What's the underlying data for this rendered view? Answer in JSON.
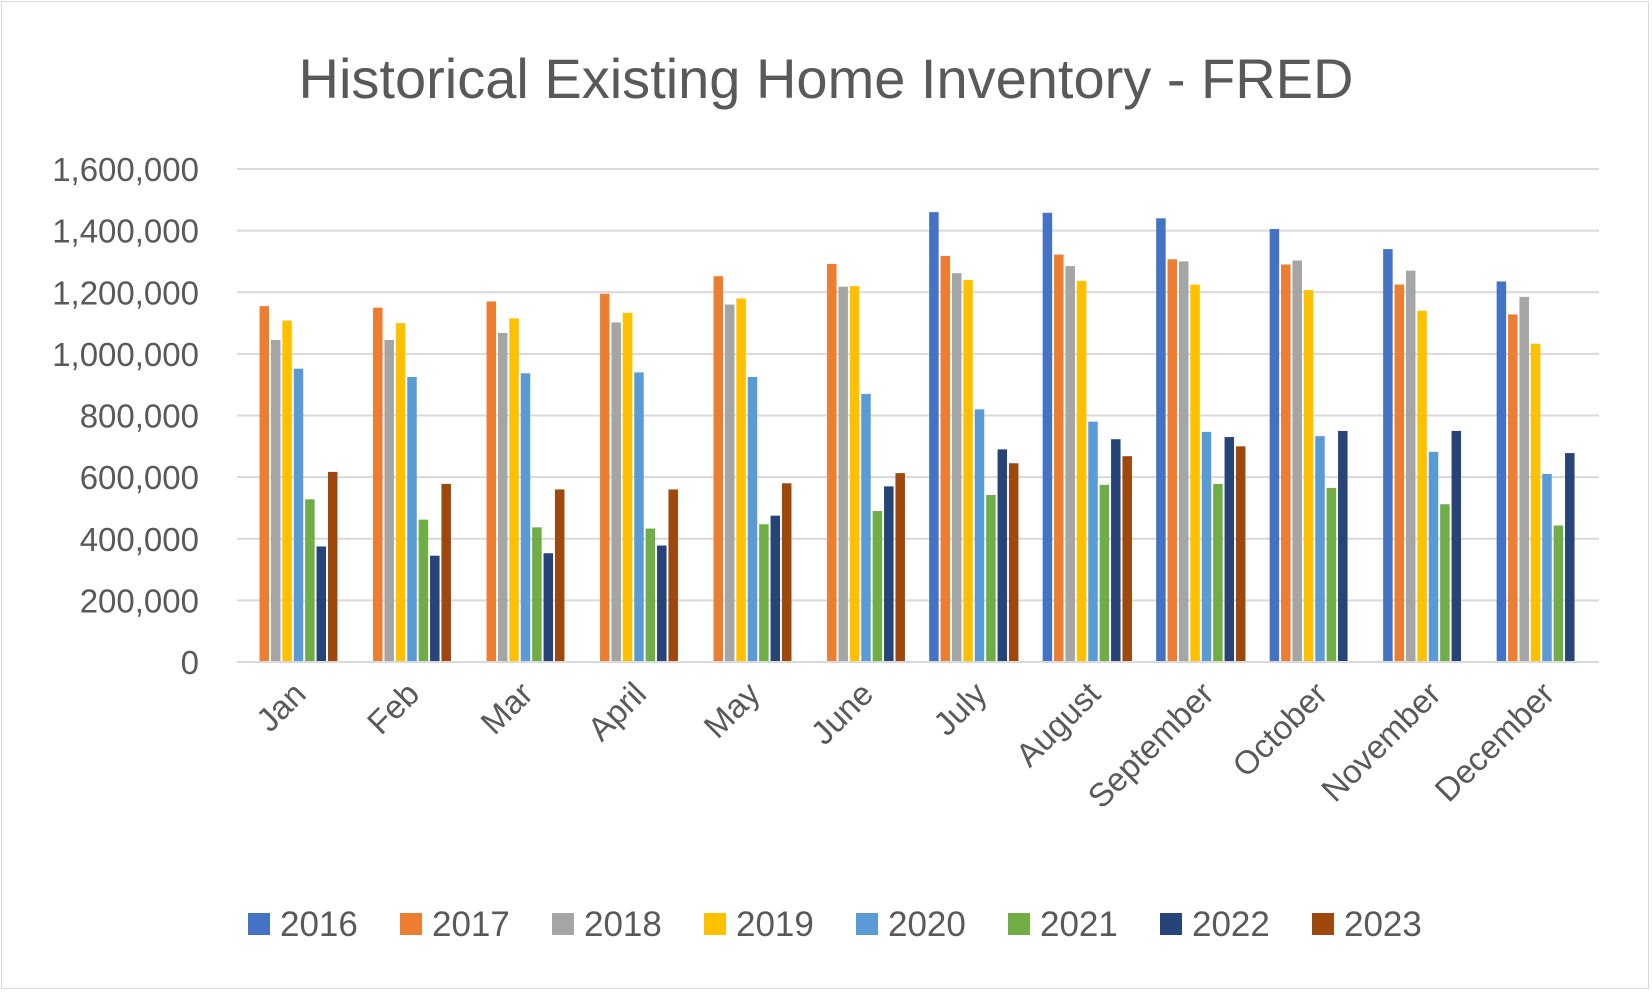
{
  "chart_data": {
    "type": "bar",
    "title": "Historical Existing Home Inventory - FRED",
    "xlabel": "",
    "ylabel": "",
    "ylim": [
      0,
      1600000
    ],
    "yticks": [
      0,
      200000,
      400000,
      600000,
      800000,
      1000000,
      1200000,
      1400000,
      1600000
    ],
    "ytick_labels": [
      "0",
      "200,000",
      "400,000",
      "600,000",
      "800,000",
      "1,000,000",
      "1,200,000",
      "1,400,000",
      "1,600,000"
    ],
    "grid": true,
    "legend": "bottom",
    "categories": [
      "Jan",
      "Feb",
      "Mar",
      "April",
      "May",
      "June",
      "July",
      "August",
      "September",
      "October",
      "November",
      "December"
    ],
    "series": [
      {
        "name": "2016",
        "color": "#4472c4",
        "values": [
          null,
          null,
          null,
          null,
          null,
          null,
          1460000,
          1458000,
          1440000,
          1405000,
          1340000,
          1235000
        ]
      },
      {
        "name": "2017",
        "color": "#ed7d31",
        "values": [
          1155000,
          1150000,
          1170000,
          1195000,
          1252000,
          1292000,
          1318000,
          1322000,
          1307000,
          1290000,
          1225000,
          1128000
        ]
      },
      {
        "name": "2018",
        "color": "#a5a5a5",
        "values": [
          1045000,
          1045000,
          1068000,
          1102000,
          1160000,
          1218000,
          1262000,
          1285000,
          1300000,
          1303000,
          1270000,
          1185000
        ]
      },
      {
        "name": "2019",
        "color": "#ffc000",
        "values": [
          1108000,
          1100000,
          1115000,
          1133000,
          1180000,
          1220000,
          1240000,
          1237000,
          1225000,
          1207000,
          1140000,
          1033000
        ]
      },
      {
        "name": "2020",
        "color": "#5b9bd5",
        "values": [
          952000,
          925000,
          937000,
          940000,
          925000,
          870000,
          820000,
          780000,
          747000,
          733000,
          682000,
          610000
        ]
      },
      {
        "name": "2021",
        "color": "#70ad47",
        "values": [
          528000,
          462000,
          437000,
          433000,
          447000,
          490000,
          542000,
          575000,
          578000,
          565000,
          512000,
          443000
        ]
      },
      {
        "name": "2022",
        "color": "#264478",
        "values": [
          375000,
          345000,
          353000,
          378000,
          475000,
          570000,
          690000,
          723000,
          730000,
          750000,
          750000,
          678000
        ]
      },
      {
        "name": "2023",
        "color": "#9e480e",
        "values": [
          617000,
          578000,
          560000,
          560000,
          580000,
          613000,
          645000,
          668000,
          700000,
          null,
          null,
          null
        ]
      }
    ]
  }
}
